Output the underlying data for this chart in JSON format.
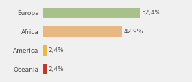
{
  "categories": [
    "Oceania",
    "America",
    "Africa",
    "Europa"
  ],
  "values": [
    2.4,
    2.4,
    42.9,
    52.4
  ],
  "labels": [
    "2,4%",
    "2,4%",
    "42,9%",
    "52,4%"
  ],
  "bar_colors": [
    "#c0392b",
    "#e8b84a",
    "#e8b882",
    "#a8c08a"
  ],
  "xlim": [
    0,
    68
  ],
  "background_color": "#f0f0f0",
  "bar_height": 0.58,
  "label_fontsize": 6.5,
  "tick_fontsize": 6.5
}
